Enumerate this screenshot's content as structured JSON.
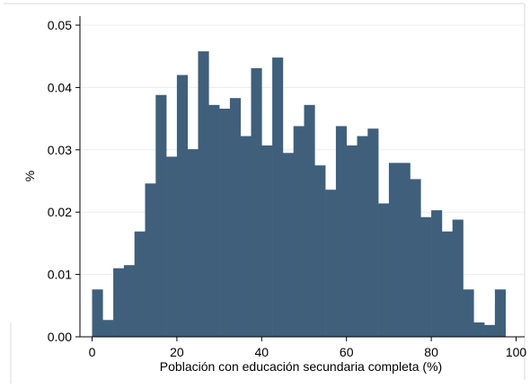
{
  "chart_data": {
    "type": "bar",
    "xlabel": "Población con educación secundaria completa (%)",
    "ylabel": "%",
    "xlim": [
      0,
      100
    ],
    "ylim": [
      0,
      0.05
    ],
    "x_ticks": [
      0,
      20,
      40,
      60,
      80,
      100
    ],
    "x_tick_labels": [
      "0",
      "20",
      "40",
      "60",
      "80",
      "100"
    ],
    "y_ticks": [
      0,
      0.01,
      0.02,
      0.03,
      0.04,
      0.05
    ],
    "y_tick_labels": [
      "0.00",
      "0.01",
      "0.02",
      "0.03",
      "0.04",
      "0.05"
    ],
    "grid": true,
    "bin_start": 0,
    "bin_width": 2.5,
    "values": [
      0.0076,
      0.0027,
      0.011,
      0.0115,
      0.0169,
      0.0246,
      0.0388,
      0.0289,
      0.042,
      0.0301,
      0.0458,
      0.0372,
      0.0366,
      0.0383,
      0.0322,
      0.0431,
      0.0307,
      0.0448,
      0.0295,
      0.0338,
      0.0372,
      0.0275,
      0.0236,
      0.0338,
      0.0307,
      0.0322,
      0.0334,
      0.0214,
      0.0279,
      0.0279,
      0.0253,
      0.0192,
      0.0203,
      0.0169,
      0.0188,
      0.0076,
      0.0023,
      0.0019,
      0.0076
    ],
    "bar_color": "#3f5f7b"
  }
}
